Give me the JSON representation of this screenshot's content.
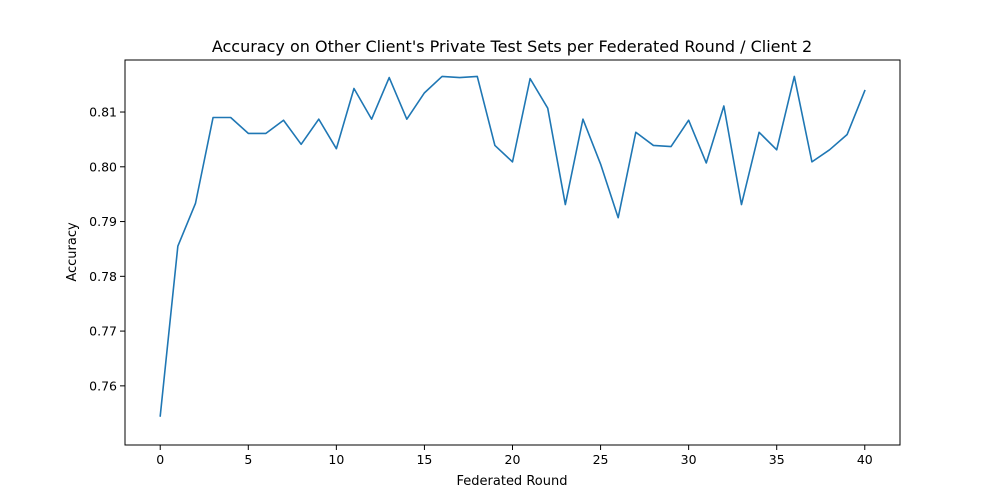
{
  "chart_data": {
    "type": "line",
    "title": "Accuracy on Other Client's Private Test Sets per Federated Round / Client 2",
    "xlabel": "Federated Round",
    "ylabel": "Accuracy",
    "xlim": [
      -2,
      42
    ],
    "ylim": [
      0.7492,
      0.8195
    ],
    "x_ticks": [
      0,
      5,
      10,
      15,
      20,
      25,
      30,
      35,
      40
    ],
    "y_ticks": [
      0.76,
      0.77,
      0.78,
      0.79,
      0.8,
      0.81
    ],
    "y_tick_labels": [
      "0.76",
      "0.77",
      "0.78",
      "0.79",
      "0.80",
      "0.81"
    ],
    "grid": false,
    "series": [
      {
        "color": "#1f77b4",
        "x": [
          0,
          1,
          2,
          3,
          4,
          5,
          6,
          7,
          8,
          9,
          10,
          11,
          12,
          13,
          14,
          15,
          16,
          17,
          18,
          19,
          20,
          21,
          22,
          23,
          24,
          25,
          26,
          27,
          28,
          29,
          30,
          31,
          32,
          33,
          34,
          35,
          36,
          37,
          38,
          39,
          40
        ],
        "y": [
          0.7545,
          0.7855,
          0.7933,
          0.809,
          0.809,
          0.8061,
          0.8061,
          0.8085,
          0.8041,
          0.8087,
          0.8033,
          0.8143,
          0.8087,
          0.8163,
          0.8087,
          0.8135,
          0.8165,
          0.8163,
          0.8165,
          0.8039,
          0.8009,
          0.8161,
          0.8107,
          0.7931,
          0.8087,
          0.8005,
          0.7907,
          0.8063,
          0.8039,
          0.8037,
          0.8085,
          0.8007,
          0.8111,
          0.7931,
          0.8063,
          0.8031,
          0.8165,
          0.8009,
          0.8031,
          0.8059,
          0.8139
        ]
      }
    ]
  }
}
